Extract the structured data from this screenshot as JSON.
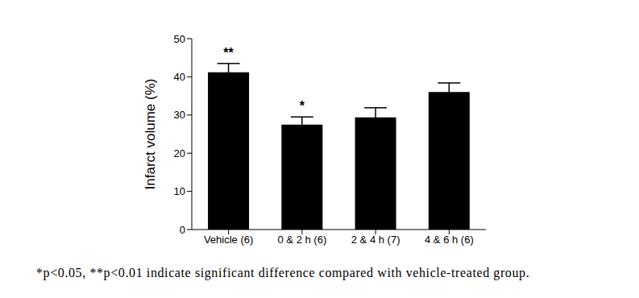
{
  "chart_data": {
    "type": "bar",
    "categories": [
      "Vehicle (6)",
      "0 & 2 h (6)",
      "2 & 4 h (7)",
      "4 & 6 h (6)"
    ],
    "values": [
      41.2,
      27.5,
      29.4,
      36.0
    ],
    "errors": [
      2.3,
      2.0,
      2.5,
      2.4
    ],
    "significance": [
      "**",
      "*",
      null,
      null
    ],
    "y_label": "Infarct volume (%)",
    "color": "#000000",
    "ylim": [
      0,
      50
    ],
    "yticks": [
      0,
      10,
      20,
      30,
      40,
      50
    ],
    "caption": "*p<0.05, **p<0.01 indicate significant difference compared with vehicle-treated group."
  }
}
